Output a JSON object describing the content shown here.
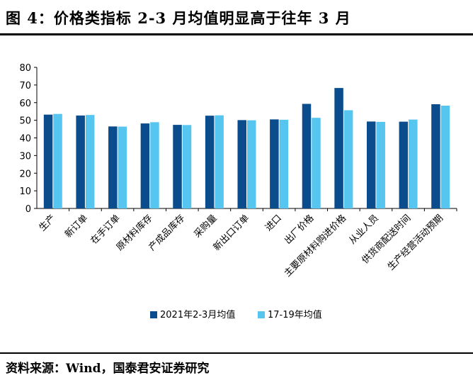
{
  "title": "图 4：价格类指标 2-3 月均值明显高于往年 3 月",
  "source": "资料来源：Wind，国泰君安证券研究",
  "chart_data": {
    "type": "bar",
    "categories": [
      "生产",
      "新订单",
      "在手订单",
      "原材料库存",
      "产成品库存",
      "采购量",
      "新出口订单",
      "进口",
      "出厂价格",
      "主要原材料购进价格",
      "从业人员",
      "供货商配送时间",
      "生产经营活动预期"
    ],
    "series": [
      {
        "name": "2021年2-3月均值",
        "color": "#0b4c8c",
        "values": [
          53.2,
          52.7,
          46.5,
          48.2,
          47.4,
          52.6,
          50.1,
          50.5,
          59.3,
          68.3,
          49.3,
          49.2,
          59.1
        ]
      },
      {
        "name": "17-19年均值",
        "color": "#56c5ef",
        "values": [
          53.6,
          53.0,
          46.4,
          48.9,
          47.3,
          52.8,
          50.0,
          50.3,
          51.4,
          55.7,
          49.1,
          50.4,
          58.3
        ]
      }
    ],
    "ylim": [
      0,
      80
    ],
    "yticks": [
      0,
      10,
      20,
      30,
      40,
      50,
      60,
      70,
      80
    ],
    "xlabel": "",
    "ylabel": "",
    "grid": false,
    "legend_position": "bottom"
  }
}
